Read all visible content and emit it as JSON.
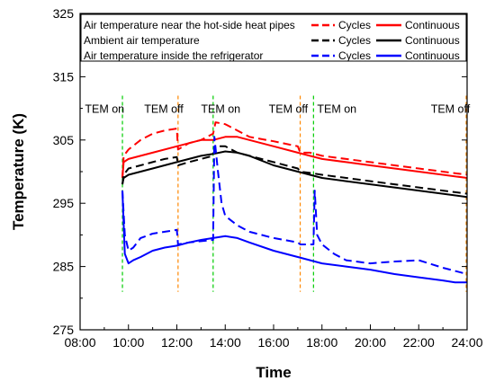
{
  "chart_data": {
    "type": "line",
    "xlabel": "Time",
    "ylabel": "Temperature (K)",
    "xlim": [
      8,
      24
    ],
    "ylim": [
      275,
      325
    ],
    "x_ticks": [
      {
        "v": 8,
        "label": "08:00"
      },
      {
        "v": 10,
        "label": "10:00"
      },
      {
        "v": 12,
        "label": "12:00"
      },
      {
        "v": 14,
        "label": "14:00"
      },
      {
        "v": 16,
        "label": "16:00"
      },
      {
        "v": 18,
        "label": "18:00"
      },
      {
        "v": 20,
        "label": "20:00"
      },
      {
        "v": 22,
        "label": "22:00"
      },
      {
        "v": 24,
        "label": "24:00"
      }
    ],
    "y_ticks": [
      {
        "v": 275,
        "label": "275"
      },
      {
        "v": 285,
        "label": "285"
      },
      {
        "v": 295,
        "label": "295"
      },
      {
        "v": 305,
        "label": "305"
      },
      {
        "v": 315,
        "label": "315"
      },
      {
        "v": 325,
        "label": "325"
      }
    ],
    "event_lines": [
      {
        "x": 9.75,
        "color": "#00cc00",
        "text": "TEM on",
        "label_x": 8.2,
        "label_y": 310
      },
      {
        "x": 12.05,
        "color": "#ff8800",
        "text": "TEM off",
        "label_x": 10.65,
        "label_y": 310
      },
      {
        "x": 13.5,
        "color": "#00cc00",
        "text": "TEM on",
        "label_x": 13.0,
        "label_y": 310
      },
      {
        "x": 17.1,
        "color": "#ff8800",
        "text": "TEM off",
        "label_x": 15.8,
        "label_y": 310
      },
      {
        "x": 17.65,
        "color": "#00cc00",
        "text": "TEM on",
        "label_x": 17.8,
        "label_y": 310
      },
      {
        "x": 24,
        "color": "#ff8800",
        "text": "TEM off",
        "label_x": 22.5,
        "label_y": 310
      }
    ],
    "legend": {
      "placement": "top",
      "rows": [
        {
          "label": "Air temperature near the hot-side heat pipes",
          "color": "#ff0000",
          "cycles": "Cycles",
          "continuous": "Continuous"
        },
        {
          "label": "Ambient air temperature",
          "color": "#000000",
          "cycles": "Cycles",
          "continuous": "Continuous"
        },
        {
          "label": "Air temperature inside the refrigerator",
          "color": "#0000ff",
          "cycles": "Cycles",
          "continuous": "Continuous"
        }
      ]
    },
    "series": [
      {
        "color": "#ff0000",
        "style": "dashed",
        "x": [
          9.75,
          9.8,
          10.0,
          10.5,
          11.0,
          11.5,
          12.0,
          12.05,
          12.5,
          13.0,
          13.5,
          13.6,
          14.0,
          14.5,
          15.0,
          16.0,
          17.0,
          17.1,
          17.5,
          18.0,
          19.0,
          20.0,
          21.0,
          22.0,
          23.0,
          24.0
        ],
        "y": [
          299,
          302.5,
          303.5,
          305,
          306,
          306.5,
          306.8,
          303.5,
          304.5,
          305,
          306,
          307.8,
          307.5,
          306.5,
          305.5,
          304.8,
          304,
          303,
          303,
          302.5,
          302,
          301.5,
          301,
          300.5,
          300,
          299.5
        ]
      },
      {
        "color": "#ff0000",
        "style": "solid",
        "x": [
          9.75,
          9.8,
          10.0,
          10.5,
          11.0,
          12.0,
          12.5,
          13.0,
          13.5,
          14.0,
          14.5,
          15.0,
          16.0,
          17.0,
          18.0,
          19.0,
          20.0,
          21.0,
          22.0,
          23.0,
          24.0
        ],
        "y": [
          299,
          301.5,
          302,
          302.5,
          303,
          304,
          304.5,
          305,
          305,
          305.5,
          305.5,
          305,
          304,
          303,
          302,
          301.5,
          301,
          300.5,
          300,
          299.5,
          299
        ]
      },
      {
        "color": "#000000",
        "style": "dashed",
        "x": [
          9.75,
          9.8,
          10.0,
          10.5,
          11.0,
          11.5,
          12.0,
          12.05,
          12.5,
          13.0,
          13.5,
          13.6,
          14.0,
          14.5,
          15.0,
          16.0,
          17.0,
          17.1,
          17.5,
          18.0,
          19.0,
          20.0,
          21.0,
          22.0,
          23.0,
          24.0
        ],
        "y": [
          298,
          299.5,
          300.5,
          301,
          301.5,
          302,
          302.3,
          301,
          301.5,
          302,
          302.5,
          304,
          304,
          303,
          302.5,
          301.5,
          300.5,
          300,
          299.8,
          299.5,
          299,
          298.5,
          298,
          297.5,
          297,
          296.5
        ]
      },
      {
        "color": "#000000",
        "style": "solid",
        "x": [
          9.75,
          9.8,
          10.0,
          10.5,
          11.0,
          12.0,
          12.5,
          13.0,
          13.5,
          14.0,
          14.5,
          15.0,
          16.0,
          17.0,
          18.0,
          19.0,
          20.0,
          21.0,
          22.0,
          23.0,
          24.0
        ],
        "y": [
          298,
          299,
          299.5,
          300,
          300.5,
          301.5,
          302,
          302.5,
          302.8,
          303.2,
          303,
          302.5,
          301,
          300,
          299,
          298.5,
          298,
          297.5,
          297,
          296.5,
          296
        ]
      },
      {
        "color": "#0000ff",
        "style": "dashed",
        "x": [
          9.75,
          9.85,
          10.0,
          10.2,
          10.5,
          11.0,
          11.5,
          12.0,
          12.05,
          12.5,
          13.0,
          13.5,
          13.55,
          13.7,
          13.85,
          14.0,
          14.5,
          15.0,
          16.0,
          17.0,
          17.1,
          17.65,
          17.7,
          17.8,
          18.0,
          18.5,
          19.0,
          20.0,
          21.0,
          22.0,
          23.0,
          24.0
        ],
        "y": [
          297,
          290,
          287.5,
          288,
          289.5,
          290.2,
          290.5,
          290.8,
          288.5,
          288.8,
          289,
          289.2,
          305.5,
          300,
          295,
          293,
          291.5,
          290.5,
          289.5,
          288.8,
          288.5,
          288.5,
          297,
          290,
          288.5,
          287,
          286,
          285.5,
          285.8,
          286,
          284.8,
          283.8
        ]
      },
      {
        "color": "#0000ff",
        "style": "solid",
        "x": [
          9.75,
          9.85,
          10.0,
          10.2,
          10.5,
          11.0,
          11.5,
          12.0,
          12.5,
          13.0,
          13.5,
          14.0,
          14.5,
          15.0,
          16.0,
          17.0,
          18.0,
          19.0,
          20.0,
          21.0,
          22.0,
          23.0,
          23.5,
          24.0
        ],
        "y": [
          297,
          287,
          285.5,
          286,
          286.5,
          287.5,
          288,
          288.3,
          288.8,
          289.2,
          289.5,
          289.8,
          289.5,
          288.8,
          287.5,
          286.5,
          285.5,
          285,
          284.5,
          283.8,
          283.3,
          282.8,
          282.5,
          282.5
        ]
      }
    ]
  }
}
